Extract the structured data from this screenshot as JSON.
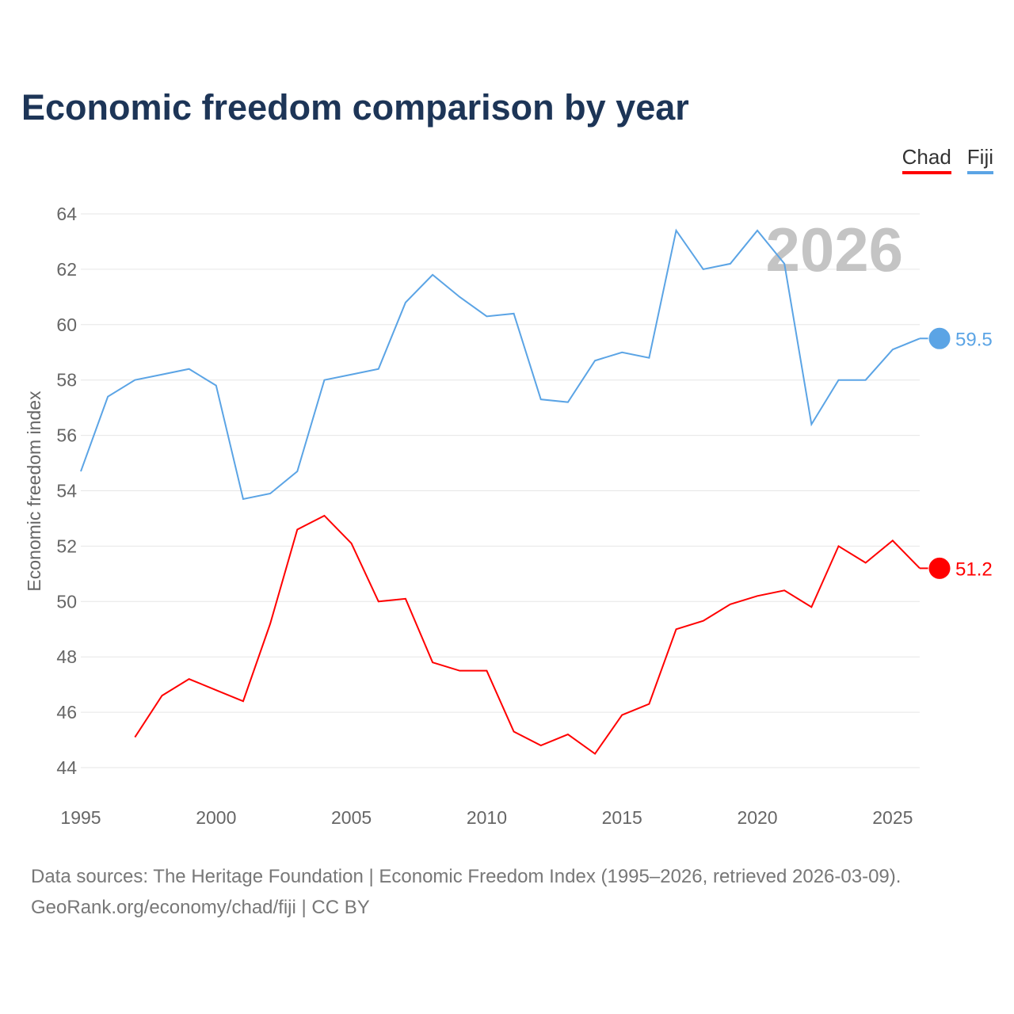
{
  "chart_data": {
    "type": "line",
    "title": "Economic freedom comparison by year",
    "xlabel": "",
    "ylabel": "Economic freedom index",
    "xlim": [
      1995,
      2026
    ],
    "ylim": [
      44,
      64
    ],
    "xticks": [
      1995,
      2000,
      2005,
      2010,
      2015,
      2020,
      2025
    ],
    "yticks": [
      44,
      46,
      48,
      50,
      52,
      54,
      56,
      58,
      60,
      62,
      64
    ],
    "grid": true,
    "legend_position": "top-right",
    "year_label": "2026",
    "series": [
      {
        "name": "Chad",
        "color": "#ff0000",
        "end_label": "51.2",
        "x": [
          1997,
          1998,
          1999,
          2000,
          2001,
          2002,
          2003,
          2004,
          2005,
          2006,
          2007,
          2008,
          2009,
          2010,
          2011,
          2012,
          2013,
          2014,
          2015,
          2016,
          2017,
          2018,
          2019,
          2020,
          2021,
          2022,
          2023,
          2024,
          2025,
          2026
        ],
        "values": [
          45.1,
          46.6,
          47.2,
          46.8,
          46.4,
          49.2,
          52.6,
          53.1,
          52.1,
          50.0,
          50.1,
          47.8,
          47.5,
          47.5,
          45.3,
          44.8,
          45.2,
          44.5,
          45.9,
          46.3,
          49.0,
          49.3,
          49.9,
          50.2,
          50.4,
          49.8,
          52.0,
          51.4,
          52.2,
          51.2
        ]
      },
      {
        "name": "Fiji",
        "color": "#5ba4e5",
        "end_label": "59.5",
        "x": [
          1995,
          1996,
          1997,
          1998,
          1999,
          2000,
          2001,
          2002,
          2003,
          2004,
          2005,
          2006,
          2007,
          2008,
          2009,
          2010,
          2011,
          2012,
          2013,
          2014,
          2015,
          2016,
          2017,
          2018,
          2019,
          2020,
          2021,
          2022,
          2023,
          2024,
          2025,
          2026
        ],
        "values": [
          54.7,
          57.4,
          58.0,
          58.2,
          58.4,
          57.8,
          53.7,
          53.9,
          54.7,
          58.0,
          58.2,
          58.4,
          60.8,
          61.8,
          61.0,
          60.3,
          60.4,
          57.3,
          57.2,
          58.7,
          59.0,
          58.8,
          63.4,
          62.0,
          62.2,
          63.4,
          62.2,
          56.4,
          58.0,
          58.0,
          59.1,
          59.5
        ]
      }
    ]
  },
  "source": {
    "line1": "Data sources: The Heritage Foundation | Economic Freedom Index (1995–2026, retrieved 2026-03-09).",
    "line2": "GeoRank.org/economy/chad/fiji | CC BY"
  }
}
